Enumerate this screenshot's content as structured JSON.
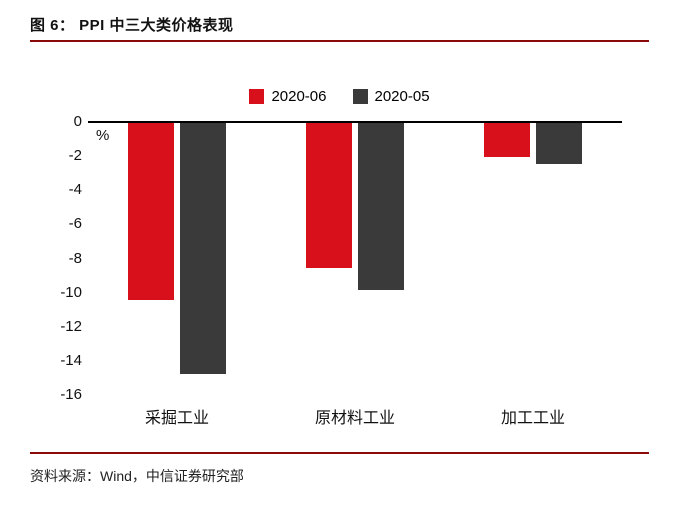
{
  "header": {
    "title": "图 6：  PPI 中三大类价格表现"
  },
  "footer": {
    "source": "资料来源：Wind，中信证券研究部"
  },
  "colors": {
    "accent_rule": "#8a0a0a",
    "series_red": "#d7101c",
    "series_dark": "#3a3a3a",
    "axis": "#000000"
  },
  "chart_data": {
    "type": "bar",
    "title": "PPI 中三大类价格表现",
    "categories": [
      "采掘工业",
      "原材料工业",
      "加工工业"
    ],
    "series": [
      {
        "name": "2020-06",
        "color": "#d7101c",
        "values": [
          -10.4,
          -8.5,
          -2.0
        ]
      },
      {
        "name": "2020-05",
        "color": "#3a3a3a",
        "values": [
          -14.7,
          -9.8,
          -2.4
        ]
      }
    ],
    "xlabel": "",
    "ylabel": "%",
    "ylim": [
      -16,
      0
    ],
    "yticks": [
      0,
      -2,
      -4,
      -6,
      -8,
      -10,
      -12,
      -14,
      -16
    ],
    "grid": false,
    "legend_position": "top-center"
  }
}
